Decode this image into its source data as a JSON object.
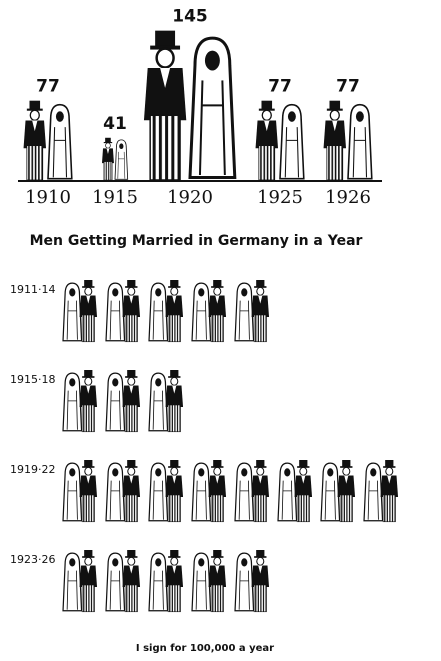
{
  "title": "Men Getting Married in Germany in a Year",
  "chart_data": [
    {
      "type": "scaled-pictogram",
      "categories": [
        "1910",
        "1915",
        "1920",
        "1925",
        "1926"
      ],
      "values": [
        77,
        41,
        145,
        77,
        77
      ],
      "color": "#111111"
    },
    {
      "type": "pictogram",
      "categories": [
        "1911·14",
        "1915·18",
        "1919·22",
        "1923·26"
      ],
      "values": [
        5,
        3,
        8,
        5
      ],
      "color": "#111111",
      "note": "I sign for 100,000 a year"
    }
  ]
}
